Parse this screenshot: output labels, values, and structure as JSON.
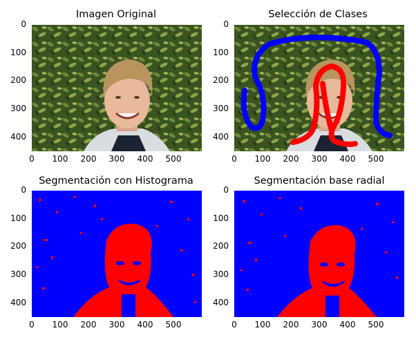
{
  "panels": [
    {
      "title": "Imagen Original"
    },
    {
      "title": "Selección de Clases"
    },
    {
      "title": "Segmentación con Histograma"
    },
    {
      "title": "Segmentación base radial"
    }
  ],
  "axes": {
    "x_ticks": [
      "0",
      "100",
      "200",
      "300",
      "400",
      "500"
    ],
    "y_ticks": [
      "0",
      "100",
      "200",
      "300",
      "400"
    ]
  },
  "colors": {
    "foliage": "#3f5a22",
    "class_background": "#0000ff",
    "class_face": "#ff0000"
  }
}
